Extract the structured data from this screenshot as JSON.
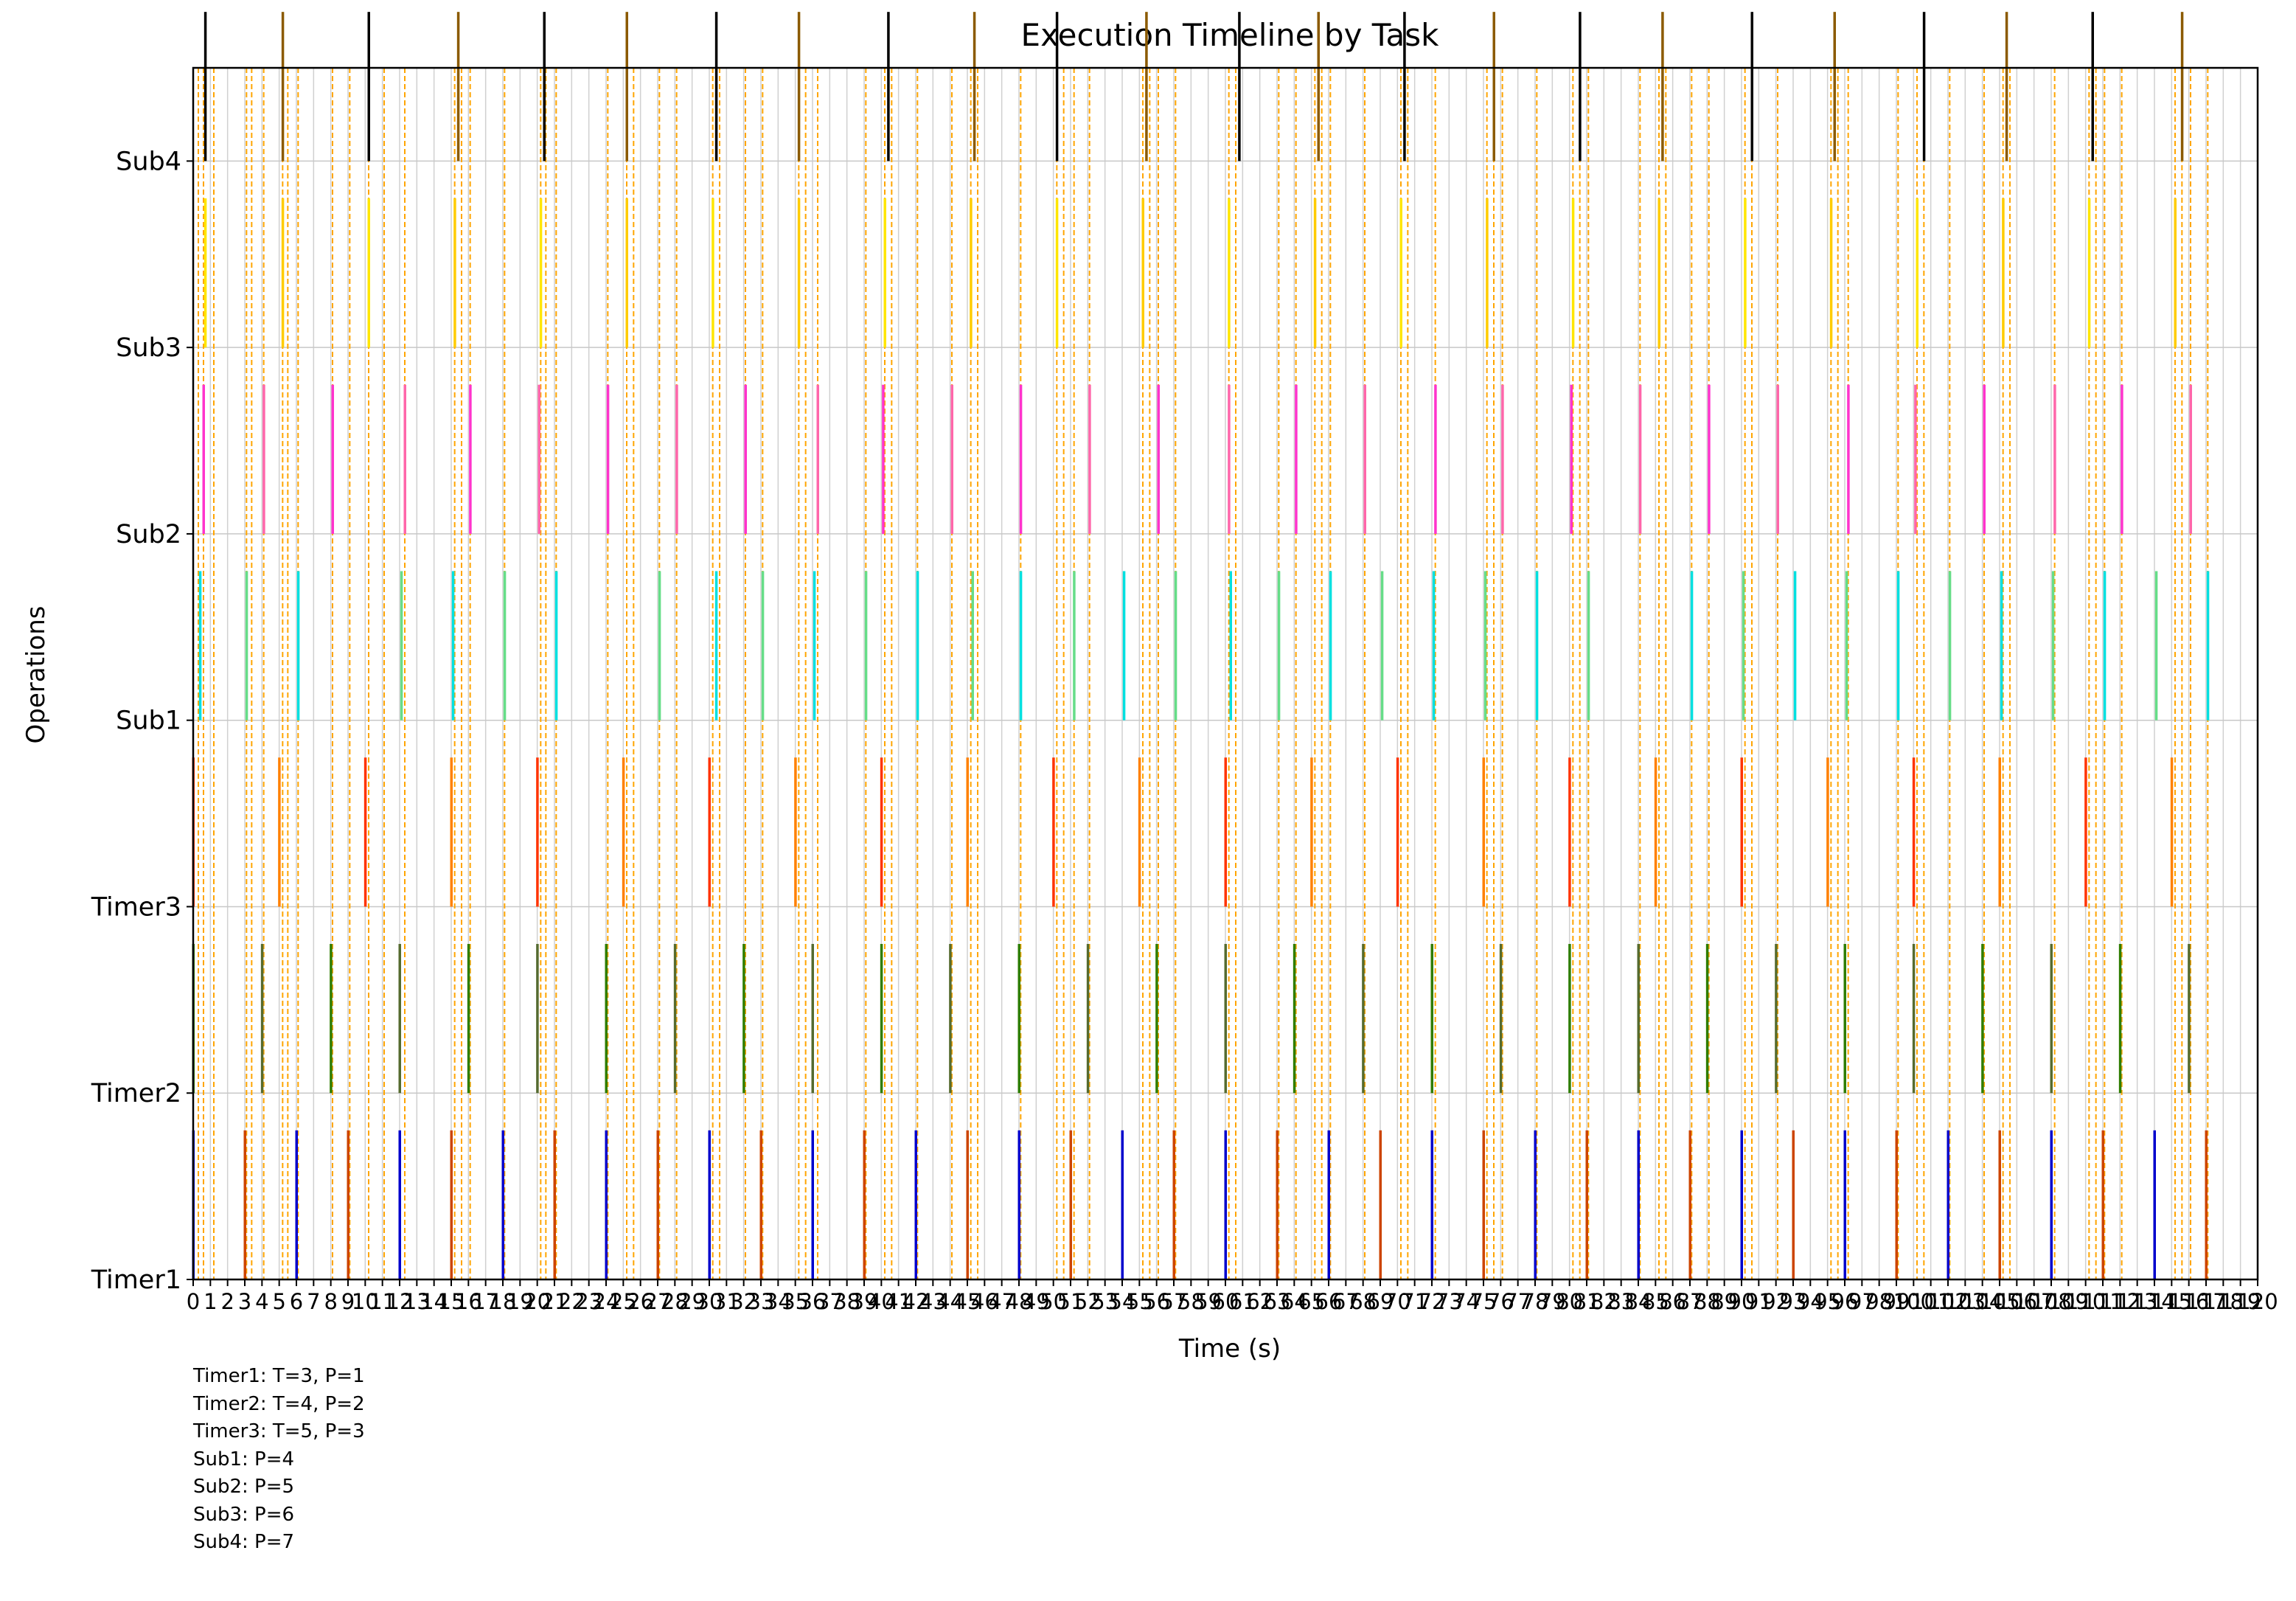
{
  "chart_data": {
    "type": "timeline",
    "title": "Execution Timeline by Task",
    "xlabel": "Time (s)",
    "ylabel": "Operations",
    "xlim": [
      0,
      120
    ],
    "x_ticks": [
      0,
      1,
      2,
      3,
      4,
      5,
      6,
      7,
      8,
      9,
      10,
      11,
      12,
      13,
      14,
      15,
      16,
      17,
      18,
      19,
      20,
      21,
      22,
      23,
      24,
      25,
      26,
      27,
      28,
      29,
      30,
      31,
      32,
      33,
      34,
      35,
      36,
      37,
      38,
      39,
      40,
      41,
      42,
      43,
      44,
      45,
      46,
      47,
      48,
      49,
      50,
      51,
      52,
      53,
      54,
      55,
      56,
      57,
      58,
      59,
      60,
      61,
      62,
      63,
      64,
      65,
      66,
      67,
      68,
      69,
      70,
      71,
      72,
      73,
      74,
      75,
      76,
      77,
      78,
      79,
      80,
      81,
      82,
      83,
      84,
      85,
      86,
      87,
      88,
      89,
      90,
      91,
      92,
      93,
      94,
      95,
      96,
      97,
      98,
      99,
      100,
      101,
      102,
      103,
      104,
      105,
      106,
      107,
      108,
      109,
      110,
      111,
      112,
      113,
      114,
      115,
      116,
      117,
      118,
      119,
      120
    ],
    "y_labels": [
      "Timer1",
      "Timer2",
      "Timer3",
      "Sub1",
      "Sub2",
      "Sub3",
      "Sub4"
    ],
    "grid": true,
    "series": [
      {
        "name": "Timer1",
        "colors": [
          "#0000cc",
          "#cc4400"
        ],
        "times": [
          0,
          3,
          6,
          9,
          12,
          15,
          18,
          21,
          24,
          27,
          30,
          33,
          36,
          39,
          42,
          45,
          48,
          51,
          54,
          57,
          60,
          63,
          66,
          69,
          72,
          75,
          78,
          81,
          84,
          87,
          90,
          93,
          96,
          99,
          102,
          105,
          108,
          111,
          114,
          117
        ]
      },
      {
        "name": "Timer2",
        "colors": [
          "#2e7d00",
          "#556b2f"
        ],
        "times": [
          0,
          4,
          8,
          12,
          16,
          20,
          24,
          28,
          32,
          36,
          40,
          44,
          48,
          52,
          56,
          60,
          64,
          68,
          72,
          76,
          80,
          84,
          88,
          92,
          96,
          100,
          104,
          108,
          112,
          116
        ]
      },
      {
        "name": "Timer3",
        "colors": [
          "#ff3300",
          "#ff8000"
        ],
        "times": [
          0,
          5,
          10,
          15,
          20,
          25,
          30,
          35,
          40,
          45,
          50,
          55,
          60,
          65,
          70,
          75,
          80,
          85,
          90,
          95,
          100,
          105,
          110,
          115
        ]
      },
      {
        "name": "Sub1",
        "colors": [
          "#00e0e0",
          "#66dd88"
        ],
        "times": [
          0.4,
          3.1,
          6.1,
          12.1,
          15.1,
          18.1,
          21.1,
          27.1,
          30.4,
          33.1,
          36.1,
          39.1,
          42.1,
          45.3,
          48.1,
          51.2,
          54.1,
          57.1,
          60.3,
          63.1,
          66.1,
          69.1,
          72.1,
          75.1,
          78.1,
          81.1,
          87.1,
          90.1,
          93.1,
          96.1,
          99.1,
          102.1,
          105.1,
          108.1,
          111.1,
          114.1,
          117.1
        ]
      },
      {
        "name": "Sub2",
        "colors": [
          "#ff33cc",
          "#ff66aa"
        ],
        "times": [
          0.6,
          4.1,
          8.1,
          12.3,
          16.1,
          20.1,
          24.1,
          28.1,
          32.1,
          36.3,
          40.1,
          44.1,
          48.1,
          52.1,
          56.1,
          60.2,
          64.1,
          68.1,
          72.2,
          76.1,
          80.1,
          84.1,
          88.1,
          92.1,
          96.2,
          100.1,
          104.1,
          108.2,
          112.1,
          116.1
        ]
      },
      {
        "name": "Sub3",
        "colors": [
          "#ffe600",
          "#ffcc00"
        ],
        "times": [
          0.7,
          5.2,
          10.2,
          15.2,
          20.2,
          25.2,
          30.2,
          35.2,
          40.2,
          45.2,
          50.2,
          55.2,
          60.2,
          65.2,
          70.2,
          75.2,
          80.2,
          85.2,
          90.2,
          95.2,
          100.2,
          105.2,
          110.2,
          115.2
        ]
      },
      {
        "name": "Sub4",
        "colors": [
          "#000000",
          "#8b5a00"
        ],
        "times": [
          0.7,
          5.2,
          10.2,
          15.4,
          20.4,
          25.2,
          30.4,
          35.2,
          40.4,
          45.4,
          50.2,
          55.4,
          60.8,
          65.4,
          70.4,
          75.6,
          80.6,
          85.4,
          90.6,
          95.4,
          100.6,
          105.4,
          110.4,
          115.6
        ]
      }
    ],
    "vertical_markers_color": "#ffa500",
    "vertical_markers": [
      0.3,
      0.6,
      1.2,
      3.1,
      3.4,
      4.1,
      5.2,
      5.5,
      6.1,
      8.1,
      9.1,
      10.2,
      11.1,
      12.3,
      15.2,
      15.6,
      16.1,
      18.1,
      20.2,
      20.5,
      21.1,
      24.1,
      25.2,
      25.6,
      27.1,
      28.1,
      30.2,
      30.6,
      32.1,
      33.1,
      35.2,
      35.6,
      36.3,
      39.1,
      40.2,
      40.6,
      42.1,
      44.1,
      45.2,
      45.6,
      48.1,
      50.2,
      50.6,
      51.2,
      52.1,
      55.2,
      55.6,
      56.1,
      57.1,
      60.2,
      60.6,
      63.1,
      64.1,
      65.2,
      65.6,
      66.1,
      68.1,
      70.2,
      70.6,
      72.2,
      75.2,
      75.6,
      76.1,
      78.1,
      80.2,
      80.6,
      81.1,
      84.1,
      85.2,
      85.6,
      87.1,
      88.1,
      90.2,
      90.6,
      92.1,
      95.2,
      95.6,
      96.2,
      99.1,
      100.2,
      100.6,
      102.1,
      104.1,
      105.2,
      105.6,
      108.2,
      110.2,
      110.6,
      111.1,
      112.1,
      115.2,
      115.6,
      116.1,
      117.1
    ]
  },
  "notes": [
    "Timer1: T=3, P=1",
    "Timer2: T=4, P=2",
    "Timer3: T=5, P=3",
    "Sub1: P=4",
    "Sub2: P=5",
    "Sub3: P=6",
    "Sub4: P=7"
  ]
}
